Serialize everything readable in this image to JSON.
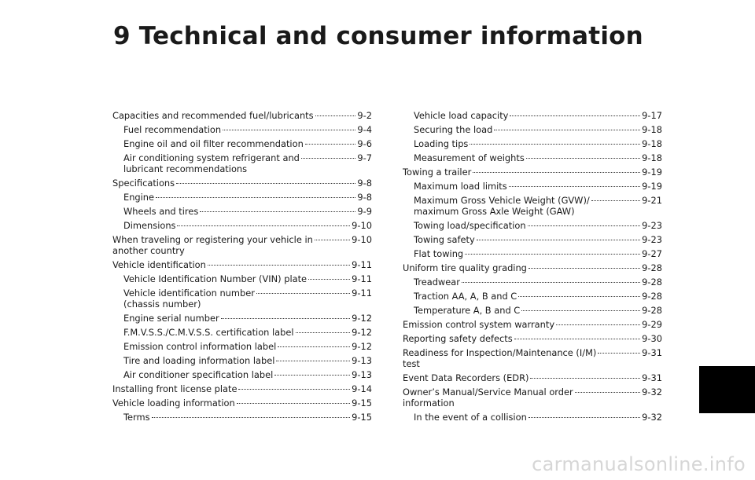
{
  "chapter": {
    "title": "9 Technical and consumer information"
  },
  "toc": {
    "left": [
      {
        "text": "Capacities and recommended fuel/lubricants",
        "page": "9-2",
        "level": 0
      },
      {
        "text": "Fuel recommendation",
        "page": "9-4",
        "level": 1
      },
      {
        "text": "Engine oil and oil filter recommendation",
        "page": "9-6",
        "level": 1
      },
      {
        "text": "Air conditioning system refrigerant and\nlubricant recommendations",
        "page": "9-7",
        "level": 1
      },
      {
        "text": "Specifications",
        "page": "9-8",
        "level": 0
      },
      {
        "text": "Engine",
        "page": "9-8",
        "level": 1
      },
      {
        "text": "Wheels and tires",
        "page": "9-9",
        "level": 1
      },
      {
        "text": "Dimensions",
        "page": "9-10",
        "level": 1
      },
      {
        "text": "When traveling or registering your vehicle in\nanother country",
        "page": "9-10",
        "level": 0
      },
      {
        "text": "Vehicle identification",
        "page": "9-11",
        "level": 0
      },
      {
        "text": "Vehicle Identification Number (VIN) plate",
        "page": "9-11",
        "level": 1
      },
      {
        "text": "Vehicle identification number\n(chassis number)",
        "page": "9-11",
        "level": 1
      },
      {
        "text": "Engine serial number",
        "page": "9-12",
        "level": 1
      },
      {
        "text": "F.M.V.S.S./C.M.V.S.S. certification label",
        "page": "9-12",
        "level": 1
      },
      {
        "text": "Emission control information label",
        "page": "9-12",
        "level": 1
      },
      {
        "text": "Tire and loading information label",
        "page": "9-13",
        "level": 1
      },
      {
        "text": "Air conditioner specification label",
        "page": "9-13",
        "level": 1
      },
      {
        "text": "Installing front license plate",
        "page": "9-14",
        "level": 0
      },
      {
        "text": "Vehicle loading information",
        "page": "9-15",
        "level": 0
      },
      {
        "text": "Terms",
        "page": "9-15",
        "level": 1
      }
    ],
    "right": [
      {
        "text": "Vehicle load capacity",
        "page": "9-17",
        "level": 1
      },
      {
        "text": "Securing the load",
        "page": "9-18",
        "level": 1
      },
      {
        "text": "Loading tips",
        "page": "9-18",
        "level": 1
      },
      {
        "text": "Measurement of weights",
        "page": "9-18",
        "level": 1
      },
      {
        "text": "Towing a trailer",
        "page": "9-19",
        "level": 0
      },
      {
        "text": "Maximum load limits",
        "page": "9-19",
        "level": 1
      },
      {
        "text": "Maximum Gross Vehicle Weight (GVW)/\nmaximum Gross Axle Weight (GAW)",
        "page": "9-21",
        "level": 1
      },
      {
        "text": "Towing load/specification",
        "page": "9-23",
        "level": 1
      },
      {
        "text": "Towing safety",
        "page": "9-23",
        "level": 1
      },
      {
        "text": "Flat towing",
        "page": "9-27",
        "level": 1
      },
      {
        "text": "Uniform tire quality grading",
        "page": "9-28",
        "level": 0
      },
      {
        "text": "Treadwear",
        "page": "9-28",
        "level": 1
      },
      {
        "text": "Traction AA, A, B and C",
        "page": "9-28",
        "level": 1
      },
      {
        "text": "Temperature A, B and C",
        "page": "9-28",
        "level": 1
      },
      {
        "text": "Emission control system warranty",
        "page": "9-29",
        "level": 0
      },
      {
        "text": "Reporting safety defects",
        "page": "9-30",
        "level": 0
      },
      {
        "text": "Readiness for Inspection/Maintenance (I/M)\ntest",
        "page": "9-31",
        "level": 0
      },
      {
        "text": "Event Data Recorders (EDR)",
        "page": "9-31",
        "level": 0
      },
      {
        "text": "Owner’s Manual/Service Manual order\ninformation",
        "page": "9-32",
        "level": 0
      },
      {
        "text": "In the event of a collision",
        "page": "9-32",
        "level": 1
      }
    ]
  },
  "watermark": {
    "text": "carmanualsonline.info"
  }
}
